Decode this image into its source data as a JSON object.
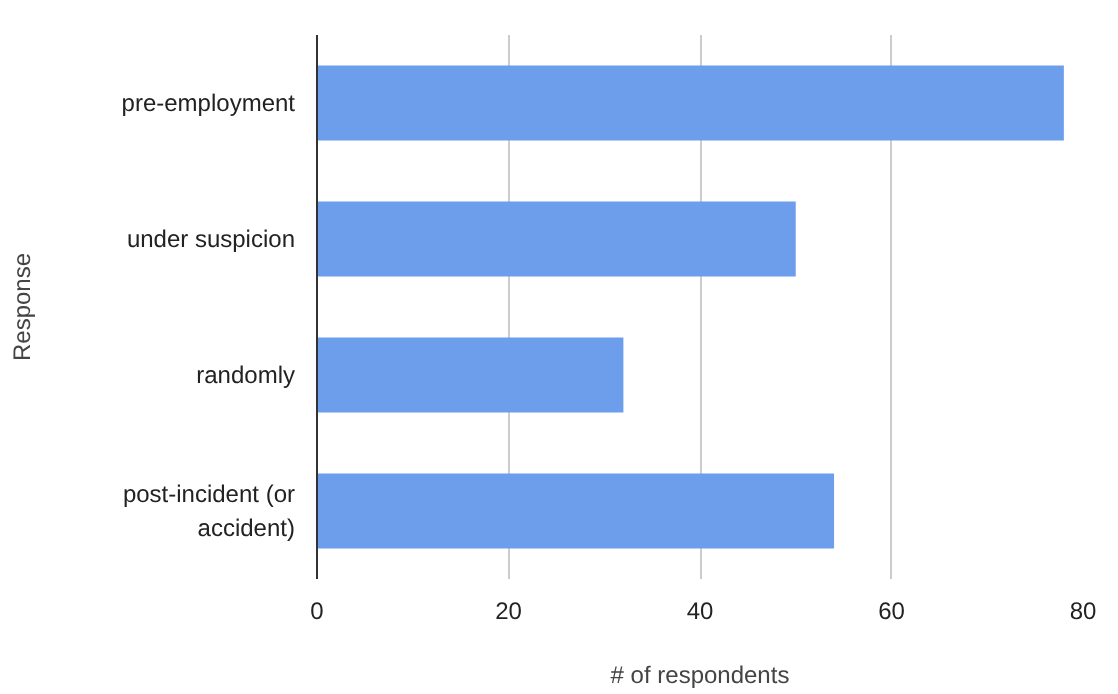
{
  "chart_data": {
    "type": "bar",
    "orientation": "horizontal",
    "categories": [
      "pre-employment",
      "under suspicion",
      "randomly",
      "post-incident (or accident)"
    ],
    "values": [
      78,
      50,
      32,
      54
    ],
    "color": "#6d9eeb",
    "xlabel": "# of respondents",
    "ylabel": "Response",
    "xlim": [
      0,
      80
    ],
    "xticks": [
      0,
      20,
      40,
      60,
      80
    ],
    "grid": "x"
  }
}
